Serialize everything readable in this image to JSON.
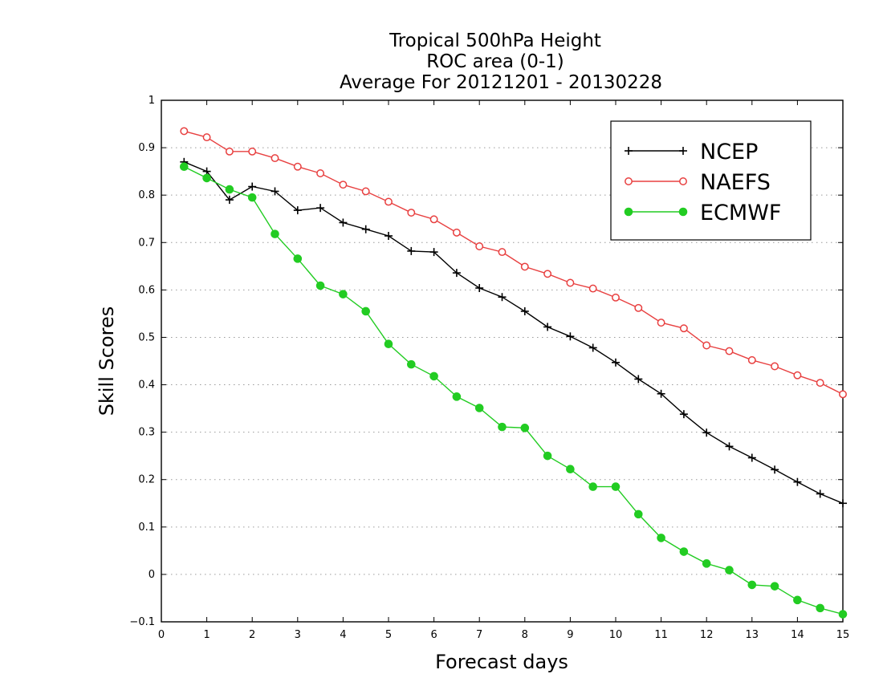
{
  "chart_data": {
    "type": "line",
    "title": [
      "Tropical 500hPa Height",
      "ROC area (0-1)",
      "Average For 20121201 - 20130228"
    ],
    "xlabel": "Forecast days",
    "ylabel": "Skill Scores",
    "xlim": [
      0,
      15
    ],
    "ylim": [
      -0.1,
      1
    ],
    "xticks": [
      "0",
      "1",
      "2",
      "3",
      "4",
      "5",
      "6",
      "7",
      "8",
      "9",
      "10",
      "11",
      "12",
      "13",
      "14",
      "15"
    ],
    "yticks": [
      "−0.1",
      "0",
      "0.1",
      "0.2",
      "0.3",
      "0.4",
      "0.5",
      "0.6",
      "0.7",
      "0.8",
      "0.9",
      "1"
    ],
    "grid": "horizontal-dotted",
    "legend_position": "top-right",
    "x": [
      0.5,
      1,
      1.5,
      2,
      2.5,
      3,
      3.5,
      4,
      4.5,
      5,
      5.5,
      6,
      6.5,
      7,
      7.5,
      8,
      8.5,
      9,
      9.5,
      10,
      10.5,
      11,
      11.5,
      12,
      12.5,
      13,
      13.5,
      14,
      14.5,
      15
    ],
    "series": [
      {
        "name": "NCEP",
        "color": "#000000",
        "marker": "plus",
        "values": [
          0.87,
          0.85,
          0.79,
          0.818,
          0.808,
          0.768,
          0.773,
          0.742,
          0.728,
          0.714,
          0.682,
          0.68,
          0.636,
          0.604,
          0.585,
          0.555,
          0.522,
          0.502,
          0.478,
          0.447,
          0.412,
          0.381,
          0.338,
          0.299,
          0.27,
          0.246,
          0.221,
          0.195,
          0.17,
          0.15
        ]
      },
      {
        "name": "NAEFS",
        "color": "#e84040",
        "marker": "open-circle",
        "values": [
          0.935,
          0.922,
          0.892,
          0.892,
          0.878,
          0.86,
          0.846,
          0.822,
          0.808,
          0.786,
          0.763,
          0.749,
          0.721,
          0.692,
          0.68,
          0.649,
          0.634,
          0.615,
          0.603,
          0.584,
          0.562,
          0.531,
          0.519,
          0.483,
          0.471,
          0.452,
          0.439,
          0.42,
          0.404,
          0.38
        ]
      },
      {
        "name": "ECMWF",
        "color": "#22cc22",
        "marker": "filled-circle",
        "values": [
          0.86,
          0.836,
          0.812,
          0.795,
          0.718,
          0.666,
          0.609,
          0.591,
          0.555,
          0.486,
          0.443,
          0.418,
          0.375,
          0.351,
          0.311,
          0.309,
          0.25,
          0.222,
          0.185,
          0.185,
          0.127,
          0.077,
          0.048,
          0.023,
          0.009,
          -0.022,
          -0.025,
          -0.054,
          -0.071,
          -0.084
        ]
      }
    ]
  }
}
